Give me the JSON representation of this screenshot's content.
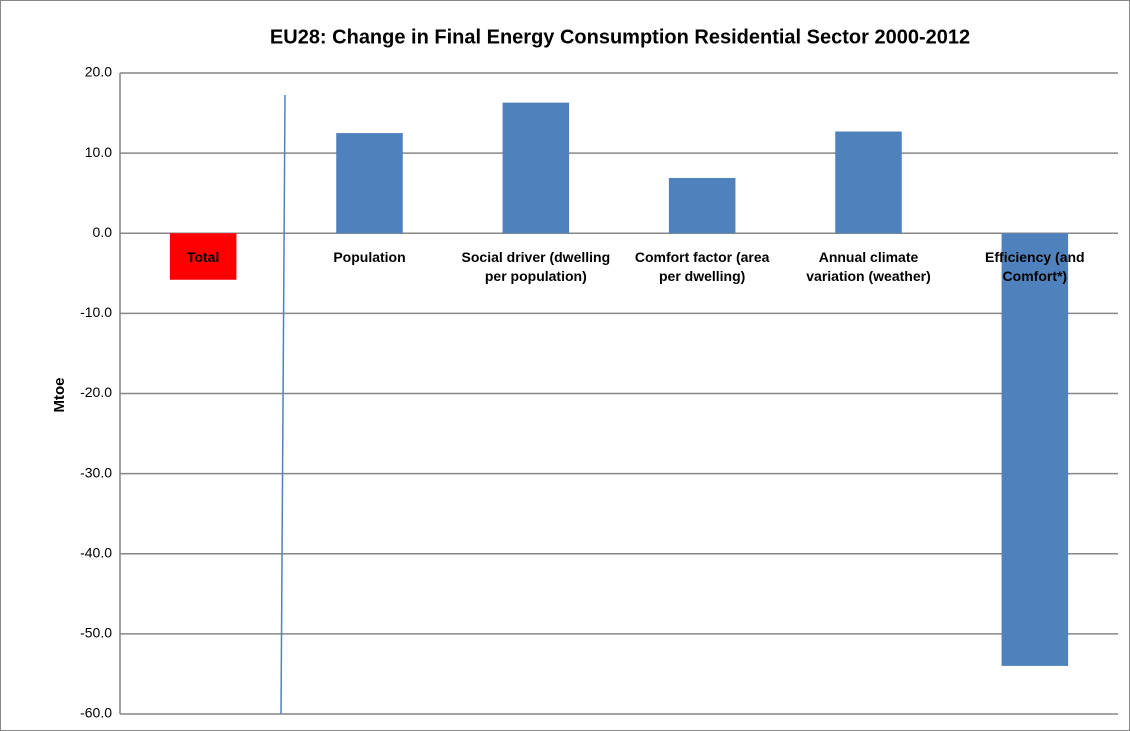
{
  "chart_data": {
    "type": "bar",
    "title": "EU28: Change in Final Energy Consumption Residential Sector 2000-2012",
    "y_label": "Mtoe",
    "categories": [
      "Total",
      "Population",
      "Social driver (dwelling per population)",
      "Comfort factor (area per dwelling)",
      "Annual climate variation (weather)",
      "Efficiency (and Comfort*)"
    ],
    "values": [
      -5.8,
      12.5,
      16.3,
      6.9,
      12.7,
      -54.0
    ],
    "colors": [
      "#ff0000",
      "#4f81bd",
      "#4f81bd",
      "#4f81bd",
      "#4f81bd",
      "#4f81bd"
    ],
    "ylim": [
      -60,
      20
    ],
    "yticks": [
      {
        "value": -60,
        "label": "-60.0"
      },
      {
        "value": -50,
        "label": "-50.0"
      },
      {
        "value": -40,
        "label": "-40.0"
      },
      {
        "value": -30,
        "label": "-30.0"
      },
      {
        "value": -20,
        "label": "-20.0"
      },
      {
        "value": -10,
        "label": "-10.0"
      },
      {
        "value": 0,
        "label": "0.0"
      },
      {
        "value": 10,
        "label": "10.0"
      },
      {
        "value": 20,
        "label": "20.0"
      }
    ],
    "grid": true
  }
}
